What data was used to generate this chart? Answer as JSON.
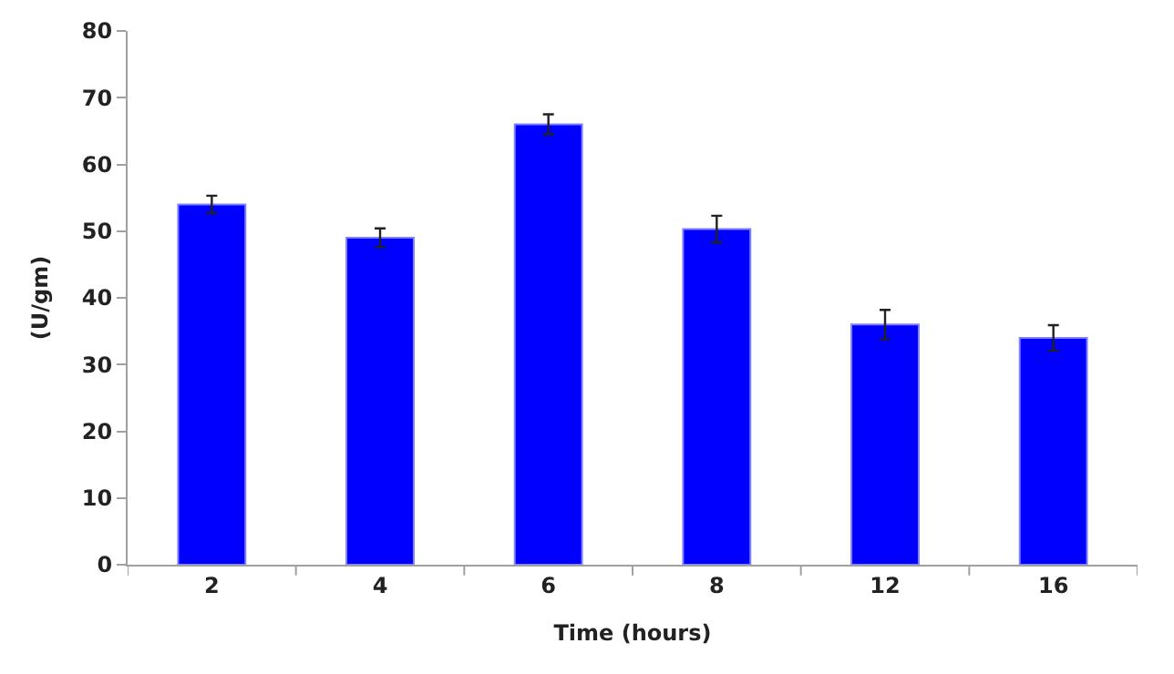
{
  "chart_data": {
    "type": "bar",
    "xlabel": "Time (hours)",
    "ylabel": "(U/gm)",
    "categories": [
      "2",
      "4",
      "6",
      "8",
      "12",
      "16"
    ],
    "values": [
      54,
      49,
      66,
      50.3,
      36,
      34
    ],
    "errors": [
      1.3,
      1.4,
      1.5,
      2,
      2.2,
      1.9
    ],
    "color": "#0000ff",
    "ylim": [
      0,
      80
    ],
    "yticks": [
      0,
      10,
      20,
      30,
      40,
      50,
      60,
      70,
      80
    ]
  }
}
